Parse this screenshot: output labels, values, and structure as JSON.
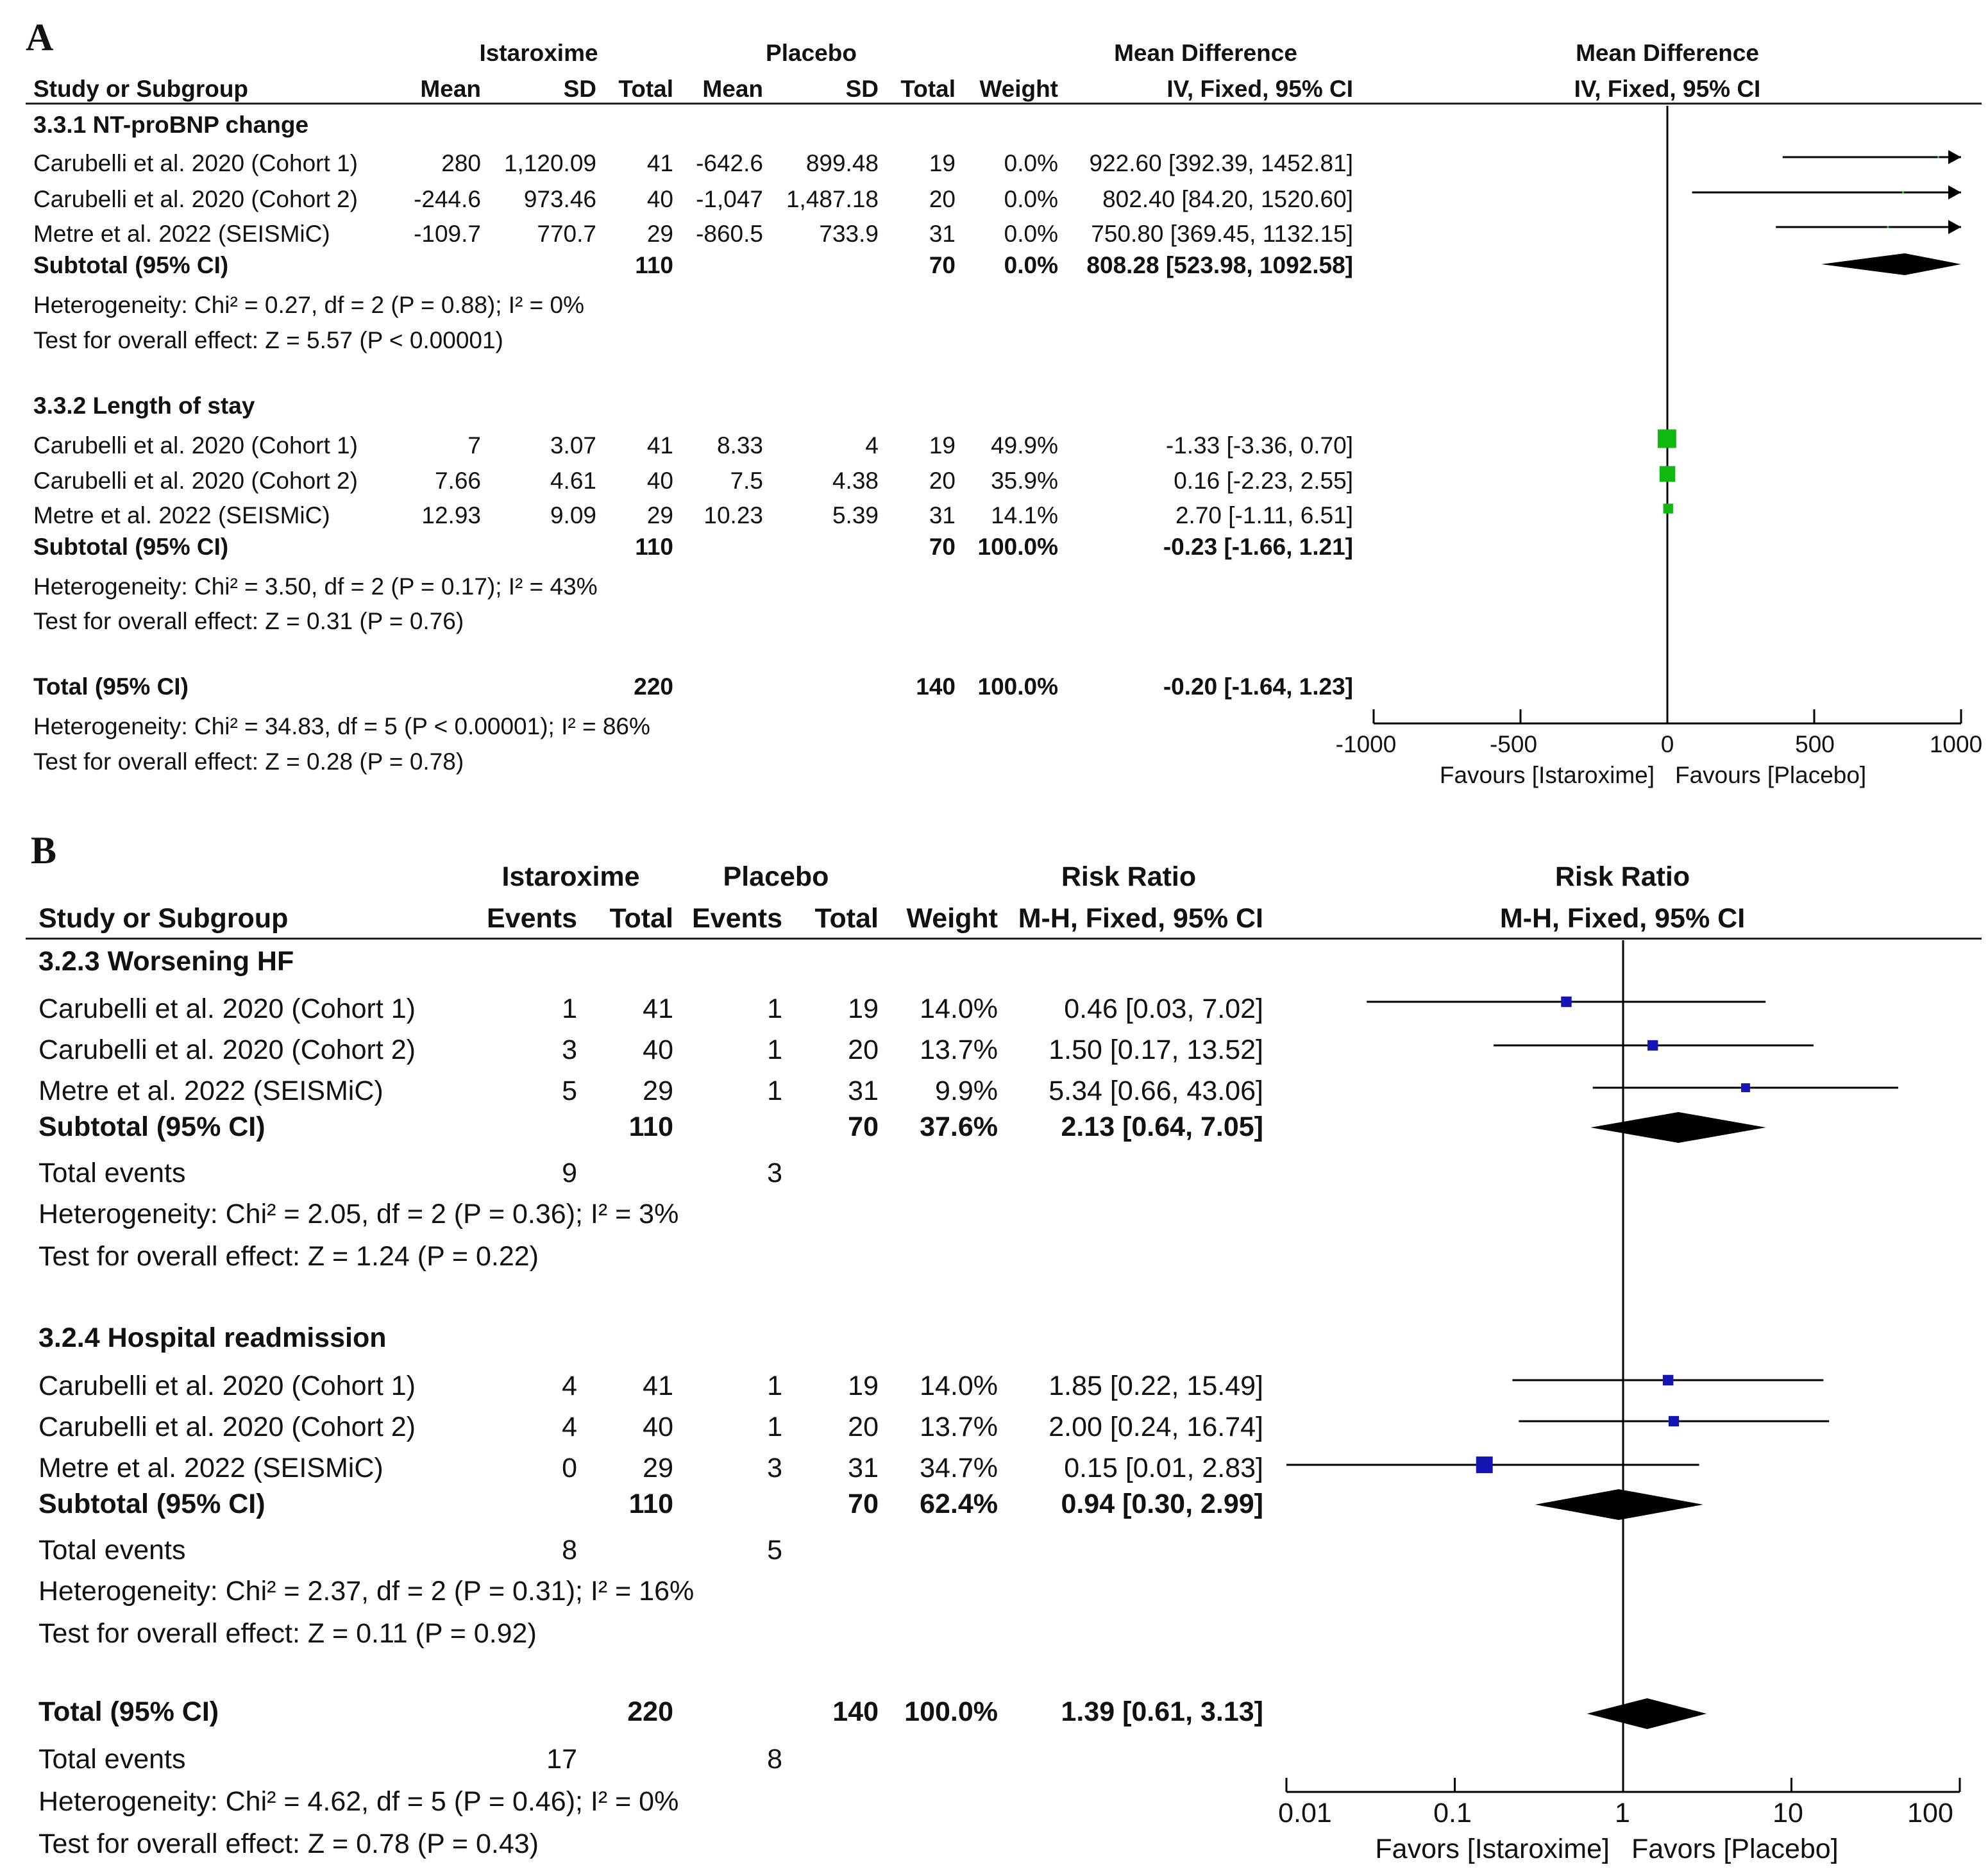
{
  "colors": {
    "panel_a_marker": "#11b811",
    "panel_b_marker": "#1515b4",
    "line": "#000000"
  },
  "panel_a": {
    "label": "A",
    "headers": {
      "group1": "Istaroxime",
      "group2": "Placebo",
      "study": "Study or Subgroup",
      "mean": "Mean",
      "sd": "SD",
      "total": "Total",
      "weight": "Weight",
      "effect_top": "Mean Difference",
      "effect_bottom": "IV, Fixed, 95% CI",
      "plot_top": "Mean Difference",
      "plot_bottom": "IV, Fixed, 95% CI"
    },
    "subgroups": [
      {
        "title": "3.3.1 NT-proBNP change",
        "rows": [
          {
            "study": "Carubelli et al. 2020 (Cohort 1)",
            "m1": "280",
            "sd1": "1,120.09",
            "n1": "41",
            "m2": "-642.6",
            "sd2": "899.48",
            "n2": "19",
            "weight": "0.0%",
            "ci": "922.60 [392.39, 1452.81]"
          },
          {
            "study": "Carubelli et al. 2020 (Cohort 2)",
            "m1": "-244.6",
            "sd1": "973.46",
            "n1": "40",
            "m2": "-1,047",
            "sd2": "1,487.18",
            "n2": "20",
            "weight": "0.0%",
            "ci": "802.40 [84.20, 1520.60]"
          },
          {
            "study": "Metre et al. 2022 (SEISMiC)",
            "m1": "-109.7",
            "sd1": "770.7",
            "n1": "29",
            "m2": "-860.5",
            "sd2": "733.9",
            "n2": "31",
            "weight": "0.0%",
            "ci": "750.80 [369.45, 1132.15]"
          }
        ],
        "subtotal": {
          "label": "Subtotal (95% CI)",
          "n1": "110",
          "n2": "70",
          "weight": "0.0%",
          "ci": "808.28 [523.98, 1092.58]"
        },
        "heterogeneity": "Heterogeneity: Chi² = 0.27, df = 2 (P = 0.88); I² = 0%",
        "overall": "Test for overall effect: Z = 5.57 (P < 0.00001)"
      },
      {
        "title": "3.3.2 Length of stay",
        "rows": [
          {
            "study": "Carubelli et al. 2020 (Cohort 1)",
            "m1": "7",
            "sd1": "3.07",
            "n1": "41",
            "m2": "8.33",
            "sd2": "4",
            "n2": "19",
            "weight": "49.9%",
            "ci": "-1.33 [-3.36, 0.70]"
          },
          {
            "study": "Carubelli et al. 2020 (Cohort 2)",
            "m1": "7.66",
            "sd1": "4.61",
            "n1": "40",
            "m2": "7.5",
            "sd2": "4.38",
            "n2": "20",
            "weight": "35.9%",
            "ci": "0.16 [-2.23, 2.55]"
          },
          {
            "study": "Metre et al. 2022 (SEISMiC)",
            "m1": "12.93",
            "sd1": "9.09",
            "n1": "29",
            "m2": "10.23",
            "sd2": "5.39",
            "n2": "31",
            "weight": "14.1%",
            "ci": "2.70 [-1.11, 6.51]"
          }
        ],
        "subtotal": {
          "label": "Subtotal (95% CI)",
          "n1": "110",
          "n2": "70",
          "weight": "100.0%",
          "ci": "-0.23 [-1.66, 1.21]"
        },
        "heterogeneity": "Heterogeneity: Chi² = 3.50, df = 2 (P = 0.17); I² = 43%",
        "overall": "Test for overall effect: Z = 0.31 (P = 0.76)"
      }
    ],
    "total": {
      "label": "Total (95% CI)",
      "n1": "220",
      "n2": "140",
      "weight": "100.0%",
      "ci": "-0.20 [-1.64, 1.23]"
    },
    "heterogeneity": "Heterogeneity: Chi² = 34.83, df = 5 (P < 0.00001); I² = 86%",
    "overall": "Test for overall effect: Z = 0.28 (P = 0.78)",
    "axis": {
      "ticks": [
        "-1000",
        "-500",
        "0",
        "500",
        "1000"
      ],
      "favours_left": "Favours [Istaroxime]",
      "favours_right": "Favours [Placebo]"
    }
  },
  "panel_b": {
    "label": "B",
    "headers": {
      "group1": "Istaroxime",
      "group2": "Placebo",
      "study": "Study or Subgroup",
      "events": "Events",
      "total": "Total",
      "weight": "Weight",
      "effect_top": "Risk Ratio",
      "effect_bottom": "M-H, Fixed, 95% CI",
      "plot_top": "Risk Ratio",
      "plot_bottom": "M-H, Fixed, 95% CI"
    },
    "subgroups": [
      {
        "title": "3.2.3 Worsening HF",
        "rows": [
          {
            "study": "Carubelli et al. 2020 (Cohort 1)",
            "e1": "1",
            "n1": "41",
            "e2": "1",
            "n2": "19",
            "weight": "14.0%",
            "ci": "0.46 [0.03, 7.02]"
          },
          {
            "study": "Carubelli et al. 2020 (Cohort 2)",
            "e1": "3",
            "n1": "40",
            "e2": "1",
            "n2": "20",
            "weight": "13.7%",
            "ci": "1.50 [0.17, 13.52]"
          },
          {
            "study": "Metre et al. 2022 (SEISMiC)",
            "e1": "5",
            "n1": "29",
            "e2": "1",
            "n2": "31",
            "weight": "9.9%",
            "ci": "5.34 [0.66, 43.06]"
          }
        ],
        "subtotal": {
          "label": "Subtotal (95% CI)",
          "n1": "110",
          "n2": "70",
          "weight": "37.6%",
          "ci": "2.13 [0.64, 7.05]"
        },
        "events": {
          "label": "Total events",
          "e1": "9",
          "e2": "3"
        },
        "heterogeneity": "Heterogeneity: Chi² = 2.05, df = 2 (P = 0.36); I² = 3%",
        "overall": "Test for overall effect: Z = 1.24 (P = 0.22)"
      },
      {
        "title": "3.2.4 Hospital readmission",
        "rows": [
          {
            "study": "Carubelli et al. 2020 (Cohort 1)",
            "e1": "4",
            "n1": "41",
            "e2": "1",
            "n2": "19",
            "weight": "14.0%",
            "ci": "1.85 [0.22, 15.49]"
          },
          {
            "study": "Carubelli et al. 2020 (Cohort 2)",
            "e1": "4",
            "n1": "40",
            "e2": "1",
            "n2": "20",
            "weight": "13.7%",
            "ci": "2.00 [0.24, 16.74]"
          },
          {
            "study": "Metre et al. 2022 (SEISMiC)",
            "e1": "0",
            "n1": "29",
            "e2": "3",
            "n2": "31",
            "weight": "34.7%",
            "ci": "0.15 [0.01, 2.83]"
          }
        ],
        "subtotal": {
          "label": "Subtotal (95% CI)",
          "n1": "110",
          "n2": "70",
          "weight": "62.4%",
          "ci": "0.94 [0.30, 2.99]"
        },
        "events": {
          "label": "Total events",
          "e1": "8",
          "e2": "5"
        },
        "heterogeneity": "Heterogeneity: Chi² = 2.37, df = 2 (P = 0.31); I² = 16%",
        "overall": "Test for overall effect: Z = 0.11 (P = 0.92)"
      }
    ],
    "total": {
      "label": "Total (95% CI)",
      "n1": "220",
      "n2": "140",
      "weight": "100.0%",
      "ci": "1.39 [0.61, 3.13]"
    },
    "events": {
      "label": "Total events",
      "e1": "17",
      "e2": "8"
    },
    "heterogeneity": "Heterogeneity: Chi² = 4.62, df = 5 (P = 0.46); I² = 0%",
    "overall": "Test for overall effect: Z = 0.78 (P = 0.43)",
    "axis": {
      "ticks": [
        "0.01",
        "0.1",
        "1",
        "10",
        "100"
      ],
      "favours_left": "Favors [Istaroxime]",
      "favours_right": "Favors [Placebo]"
    }
  },
  "chart_data": [
    {
      "type": "forest",
      "title": "A",
      "effect_measure": "Mean Difference (IV, Fixed, 95% CI)",
      "xlim": [
        -1000,
        1000
      ],
      "scale": "linear",
      "xticks": [
        -1000,
        -500,
        0,
        500,
        1000
      ],
      "studies": [
        {
          "est": 922.6,
          "lo": 392.39,
          "hi": 1452.81,
          "w": 0.0
        },
        {
          "est": 802.4,
          "lo": 84.2,
          "hi": 1520.6,
          "w": 0.0
        },
        {
          "est": 750.8,
          "lo": 369.45,
          "hi": 1132.15,
          "w": 0.0
        },
        {
          "est": -1.33,
          "lo": -3.36,
          "hi": 0.7,
          "w": 49.9
        },
        {
          "est": 0.16,
          "lo": -2.23,
          "hi": 2.55,
          "w": 35.9
        },
        {
          "est": 2.7,
          "lo": -1.11,
          "hi": 6.51,
          "w": 14.1
        }
      ],
      "diamonds": [
        {
          "est": 808.28,
          "lo": 523.98,
          "hi": 1092.58
        },
        {
          "est": -0.23,
          "lo": -1.66,
          "hi": 1.21
        },
        {
          "est": -0.2,
          "lo": -1.64,
          "hi": 1.23
        }
      ]
    },
    {
      "type": "forest",
      "title": "B",
      "effect_measure": "Risk Ratio (M-H, Fixed, 95% CI)",
      "xlim": [
        0.01,
        100
      ],
      "scale": "log",
      "xticks": [
        0.01,
        0.1,
        1,
        10,
        100
      ],
      "studies": [
        {
          "est": 0.46,
          "lo": 0.03,
          "hi": 7.02,
          "w": 14.0
        },
        {
          "est": 1.5,
          "lo": 0.17,
          "hi": 13.52,
          "w": 13.7
        },
        {
          "est": 5.34,
          "lo": 0.66,
          "hi": 43.06,
          "w": 9.9
        },
        {
          "est": 1.85,
          "lo": 0.22,
          "hi": 15.49,
          "w": 14.0
        },
        {
          "est": 2.0,
          "lo": 0.24,
          "hi": 16.74,
          "w": 13.7
        },
        {
          "est": 0.15,
          "lo": 0.01,
          "hi": 2.83,
          "w": 34.7
        }
      ],
      "diamonds": [
        {
          "est": 2.13,
          "lo": 0.64,
          "hi": 7.05
        },
        {
          "est": 0.94,
          "lo": 0.3,
          "hi": 2.99
        },
        {
          "est": 1.39,
          "lo": 0.61,
          "hi": 3.13
        }
      ]
    }
  ]
}
